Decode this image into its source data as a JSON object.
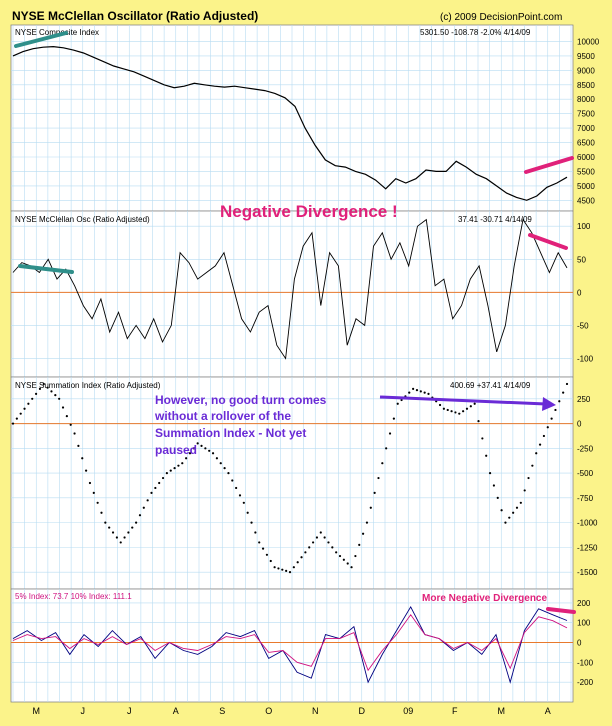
{
  "header": {
    "title": "NYSE McClellan Oscillator (Ratio Adjusted)",
    "copyright": "(c) 2009 DecisionPoint.com"
  },
  "colors": {
    "background": "#fbf38a",
    "panel": "#ffffff",
    "grid": "#b8dcf2",
    "price": "#000000",
    "zero_line": "#e8792d",
    "teal_trend": "#2f8f8a",
    "magenta_trend": "#e0217a",
    "annotation_blue": "#6a2bd6",
    "annotation_red": "#e0217a",
    "index10": "#000080",
    "index5": "#d0107f"
  },
  "annotations": {
    "negative_divergence": "Negative Divergence !",
    "summation_note": [
      "However, no good turn comes",
      "without a rollover of the",
      "Summation Index - Not yet",
      "paused"
    ],
    "more_negative": "More Negative Divergence"
  },
  "chart_data": [
    {
      "type": "line",
      "panel": "composite",
      "title": "NYSE Composite Index",
      "readout": "5301.50  -108.78  -2.0%  4/14/09",
      "ylim": [
        4200,
        10500
      ],
      "yticks": [
        4500,
        5000,
        5500,
        6000,
        6500,
        7000,
        7500,
        8000,
        8500,
        9000,
        9500,
        10000
      ],
      "xticks": [
        "M",
        "J",
        "J",
        "A",
        "S",
        "O",
        "N",
        "D",
        "09",
        "F",
        "M",
        "A"
      ],
      "grid": true,
      "series": [
        {
          "values": [
            9500,
            9650,
            9750,
            9800,
            9820,
            9780,
            9700,
            9600,
            9450,
            9300,
            9150,
            9050,
            8950,
            8800,
            8650,
            8500,
            8400,
            8450,
            8550,
            8500,
            8450,
            8420,
            8450,
            8400,
            8350,
            8300,
            8200,
            8050,
            7750,
            7000,
            6400,
            5900,
            5700,
            5650,
            5500,
            5400,
            5200,
            4900,
            5250,
            5100,
            5250,
            5550,
            5500,
            5500,
            5850,
            5650,
            5400,
            5250,
            5000,
            4750,
            4600,
            4500,
            4650,
            4950,
            5100,
            5300
          ]
        }
      ]
    },
    {
      "type": "line",
      "panel": "oscillator",
      "title": "NYSE McClellan Osc (Ratio Adjusted)",
      "readout": "37.41  -30.71  4/14/09",
      "ylim": [
        -125,
        120
      ],
      "yticks": [
        -100,
        -50,
        0,
        50,
        100
      ],
      "reference_line": 0,
      "grid": true,
      "series": [
        {
          "values": [
            30,
            45,
            40,
            30,
            50,
            20,
            35,
            10,
            -20,
            -40,
            -10,
            -60,
            -30,
            -70,
            -50,
            -70,
            -40,
            -75,
            -50,
            60,
            45,
            20,
            30,
            40,
            60,
            10,
            -40,
            -60,
            -30,
            -20,
            -80,
            -100,
            20,
            70,
            90,
            -20,
            60,
            40,
            -80,
            -40,
            -50,
            70,
            90,
            50,
            75,
            40,
            100,
            110,
            10,
            20,
            -40,
            -20,
            20,
            40,
            -20,
            -90,
            -50,
            40,
            110,
            90,
            60,
            30,
            60,
            37
          ]
        }
      ]
    },
    {
      "type": "scatter",
      "panel": "summation",
      "title": "NYSE Summation Index (Ratio Adjusted)",
      "readout": "400.69  +37.41  4/14/09",
      "ylim": [
        -1650,
        450
      ],
      "yticks": [
        -1500,
        -1250,
        -1000,
        -750,
        -500,
        -250,
        0,
        250
      ],
      "reference_line": 0,
      "grid": true,
      "series": [
        {
          "values": [
            0,
            200,
            400,
            250,
            -100,
            -600,
            -1000,
            -1200,
            -1000,
            -700,
            -500,
            -400,
            -200,
            -300,
            -500,
            -800,
            -1200,
            -1450,
            -1500,
            -1300,
            -1100,
            -1300,
            -1450,
            -1000,
            -400,
            200,
            350,
            300,
            150,
            100,
            200,
            -500,
            -1000,
            -800,
            -300,
            50,
            400
          ]
        }
      ]
    },
    {
      "type": "line",
      "panel": "breadth",
      "title": "5% Index: 73.7   10% Index: 111.1",
      "ylim": [
        -290,
        260
      ],
      "yticks": [
        -200,
        -100,
        0,
        100,
        200
      ],
      "reference_line": 0,
      "grid": true,
      "series": [
        {
          "values": [
            20,
            60,
            10,
            50,
            -60,
            40,
            -20,
            60,
            -10,
            30,
            -80,
            0,
            -40,
            -60,
            -20,
            50,
            30,
            60,
            -80,
            -40,
            -150,
            -180,
            40,
            20,
            80,
            -200,
            -60,
            60,
            180,
            40,
            20,
            -40,
            0,
            -60,
            40,
            -200,
            60,
            170,
            140,
            111
          ]
        },
        {
          "values": [
            10,
            40,
            20,
            30,
            -30,
            20,
            -10,
            30,
            -10,
            20,
            -40,
            0,
            -30,
            -40,
            -10,
            30,
            20,
            40,
            -50,
            -40,
            -100,
            -120,
            20,
            20,
            50,
            -140,
            -40,
            40,
            140,
            40,
            20,
            -30,
            0,
            -40,
            20,
            -130,
            50,
            130,
            110,
            74
          ]
        }
      ]
    }
  ]
}
